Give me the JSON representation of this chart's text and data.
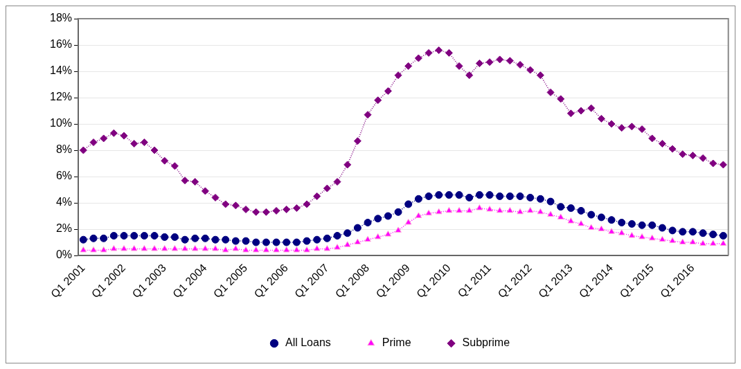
{
  "chart_data": {
    "type": "line",
    "categories": [
      "Q1 2001",
      null,
      null,
      null,
      "Q1 2002",
      null,
      null,
      null,
      "Q1 2003",
      null,
      null,
      null,
      "Q1 2004",
      null,
      null,
      null,
      "Q1 2005",
      null,
      null,
      null,
      "Q1 2006",
      null,
      null,
      null,
      "Q1 2007",
      null,
      null,
      null,
      "Q1 2008",
      null,
      null,
      null,
      "Q1 2009",
      null,
      null,
      null,
      "Q1 2010",
      null,
      null,
      null,
      "Q1 2011",
      null,
      null,
      null,
      "Q1 2012",
      null,
      null,
      null,
      "Q1 2013",
      null,
      null,
      null,
      "Q1 2014",
      null,
      null,
      null,
      "Q1 2015",
      null,
      null,
      null,
      "Q1 2016",
      null,
      null,
      null
    ],
    "series": [
      {
        "name": "All Loans",
        "color": "#000080",
        "marker": "circle",
        "values": [
          1.2,
          1.3,
          1.3,
          1.5,
          1.5,
          1.5,
          1.5,
          1.5,
          1.4,
          1.4,
          1.2,
          1.3,
          1.3,
          1.2,
          1.2,
          1.1,
          1.1,
          1.0,
          1.0,
          1.0,
          1.0,
          1.0,
          1.1,
          1.2,
          1.3,
          1.5,
          1.7,
          2.1,
          2.5,
          2.8,
          3.0,
          3.3,
          3.9,
          4.3,
          4.5,
          4.6,
          4.6,
          4.6,
          4.4,
          4.6,
          4.6,
          4.5,
          4.5,
          4.5,
          4.4,
          4.3,
          4.1,
          3.7,
          3.6,
          3.4,
          3.1,
          2.9,
          2.7,
          2.5,
          2.4,
          2.3,
          2.3,
          2.1,
          1.9,
          1.8,
          1.8,
          1.7,
          1.6,
          1.5
        ]
      },
      {
        "name": "Prime",
        "color": "#ff00ff",
        "marker": "triangle",
        "values": [
          0.4,
          0.4,
          0.4,
          0.5,
          0.5,
          0.5,
          0.5,
          0.5,
          0.5,
          0.5,
          0.5,
          0.5,
          0.5,
          0.5,
          0.4,
          0.5,
          0.4,
          0.4,
          0.4,
          0.4,
          0.4,
          0.4,
          0.4,
          0.5,
          0.5,
          0.6,
          0.8,
          1.0,
          1.2,
          1.4,
          1.6,
          1.9,
          2.5,
          3.0,
          3.2,
          3.3,
          3.4,
          3.4,
          3.4,
          3.6,
          3.5,
          3.4,
          3.4,
          3.3,
          3.4,
          3.3,
          3.1,
          2.9,
          2.6,
          2.4,
          2.1,
          2.0,
          1.8,
          1.7,
          1.5,
          1.4,
          1.3,
          1.2,
          1.1,
          1.0,
          1.0,
          0.9,
          0.9,
          0.9
        ]
      },
      {
        "name": "Subprime",
        "color": "#800080",
        "marker": "diamond",
        "values": [
          8.0,
          8.6,
          8.9,
          9.3,
          9.1,
          8.5,
          8.6,
          8.0,
          7.2,
          6.8,
          5.7,
          5.6,
          4.9,
          4.4,
          3.9,
          3.8,
          3.5,
          3.3,
          3.3,
          3.4,
          3.5,
          3.6,
          3.9,
          4.5,
          5.1,
          5.6,
          6.9,
          8.7,
          10.7,
          11.8,
          12.5,
          13.7,
          14.4,
          15.0,
          15.4,
          15.6,
          15.4,
          14.4,
          13.7,
          14.6,
          14.7,
          14.9,
          14.8,
          14.5,
          14.1,
          13.7,
          12.4,
          11.9,
          10.8,
          11.0,
          11.2,
          10.4,
          10.0,
          9.7,
          9.8,
          9.6,
          8.9,
          8.5,
          8.1,
          7.7,
          7.6,
          7.4,
          7.0,
          6.9
        ]
      }
    ],
    "ylim": [
      0,
      18
    ],
    "yticks": [
      {
        "value": 0,
        "label": "0%"
      },
      {
        "value": 2,
        "label": "2%"
      },
      {
        "value": 4,
        "label": "4%"
      },
      {
        "value": 6,
        "label": "6%"
      },
      {
        "value": 8,
        "label": "8%"
      },
      {
        "value": 10,
        "label": "10%"
      },
      {
        "value": 12,
        "label": "12%"
      },
      {
        "value": 14,
        "label": "14%"
      },
      {
        "value": 16,
        "label": "16%"
      },
      {
        "value": 18,
        "label": "18%"
      }
    ],
    "grid": "y",
    "legend": "bottom",
    "line_style": "dotted"
  }
}
